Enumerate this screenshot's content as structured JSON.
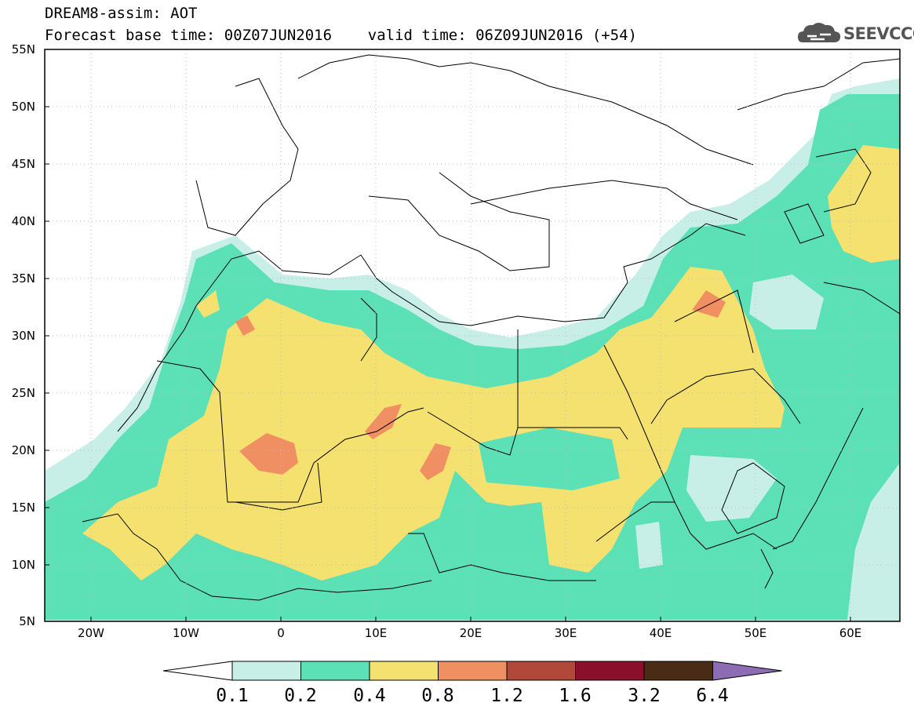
{
  "header": {
    "title_line1": "DREAM8-assim: AOT",
    "title_line2": "Forecast base time: 00Z07JUN2016    valid time: 06Z09JUN2016 (+54)"
  },
  "logo": {
    "text": "SEEVCCC",
    "icon": "cloud-icon"
  },
  "axes": {
    "lat_ticks": [
      "55N",
      "50N",
      "45N",
      "40N",
      "35N",
      "30N",
      "25N",
      "20N",
      "15N",
      "10N",
      "5N"
    ],
    "lon_ticks": [
      "20W",
      "10W",
      "0",
      "10E",
      "20E",
      "30E",
      "40E",
      "50E",
      "60E"
    ]
  },
  "map": {
    "type": "filled-contour",
    "variable": "AOT",
    "lon_range": [
      -25,
      65
    ],
    "lat_range": [
      5,
      55
    ]
  },
  "colorbar": {
    "levels": [
      "0.1",
      "0.2",
      "0.4",
      "0.8",
      "1.2",
      "1.6",
      "3.2",
      "6.4"
    ],
    "colors": [
      "#c7efe8",
      "#5ce0b5",
      "#f5e16f",
      "#ef8f62",
      "#b2483a",
      "#8a0f2b",
      "#4a2b16"
    ],
    "under_color": "#ffffff",
    "over_color": "#8e6cb4"
  },
  "colors": {
    "frame": "#000000",
    "borders": "#000000",
    "grid": "#bbbbbb"
  }
}
